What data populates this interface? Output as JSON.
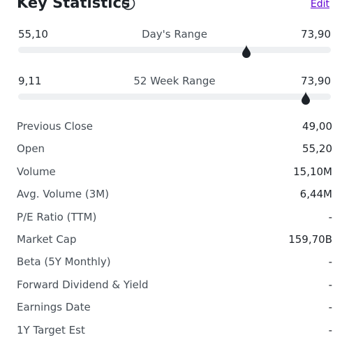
{
  "header": {
    "title": "Key Statistics",
    "edit_label": "Edit",
    "info_icon": "info-circle-icon"
  },
  "days_range": {
    "low": "55,10",
    "label": "Day's Range",
    "high": "73,90",
    "current_fraction": 0.73
  },
  "week52_range": {
    "low": "9,11",
    "label": "52 Week Range",
    "high": "73,90",
    "current_fraction": 0.92
  },
  "stats": [
    {
      "label": "Previous Close",
      "value": "49,00"
    },
    {
      "label": "Open",
      "value": "55,20"
    },
    {
      "label": "Volume",
      "value": "15,10M"
    },
    {
      "label": "Avg. Volume (3M)",
      "value": "6,44M"
    },
    {
      "label": "P/E Ratio (TTM)",
      "value": "-"
    },
    {
      "label": "Market Cap",
      "value": "159,70B"
    },
    {
      "label": "Beta (5Y Monthly)",
      "value": "-"
    },
    {
      "label": "Forward Dividend & Yield",
      "value": "-"
    },
    {
      "label": "Earnings Date",
      "value": "-"
    },
    {
      "label": "1Y Target Est",
      "value": "-"
    }
  ],
  "colors": {
    "accent_link": "#6001d2",
    "marker": "#1d2228",
    "track": "#eef0f2"
  }
}
